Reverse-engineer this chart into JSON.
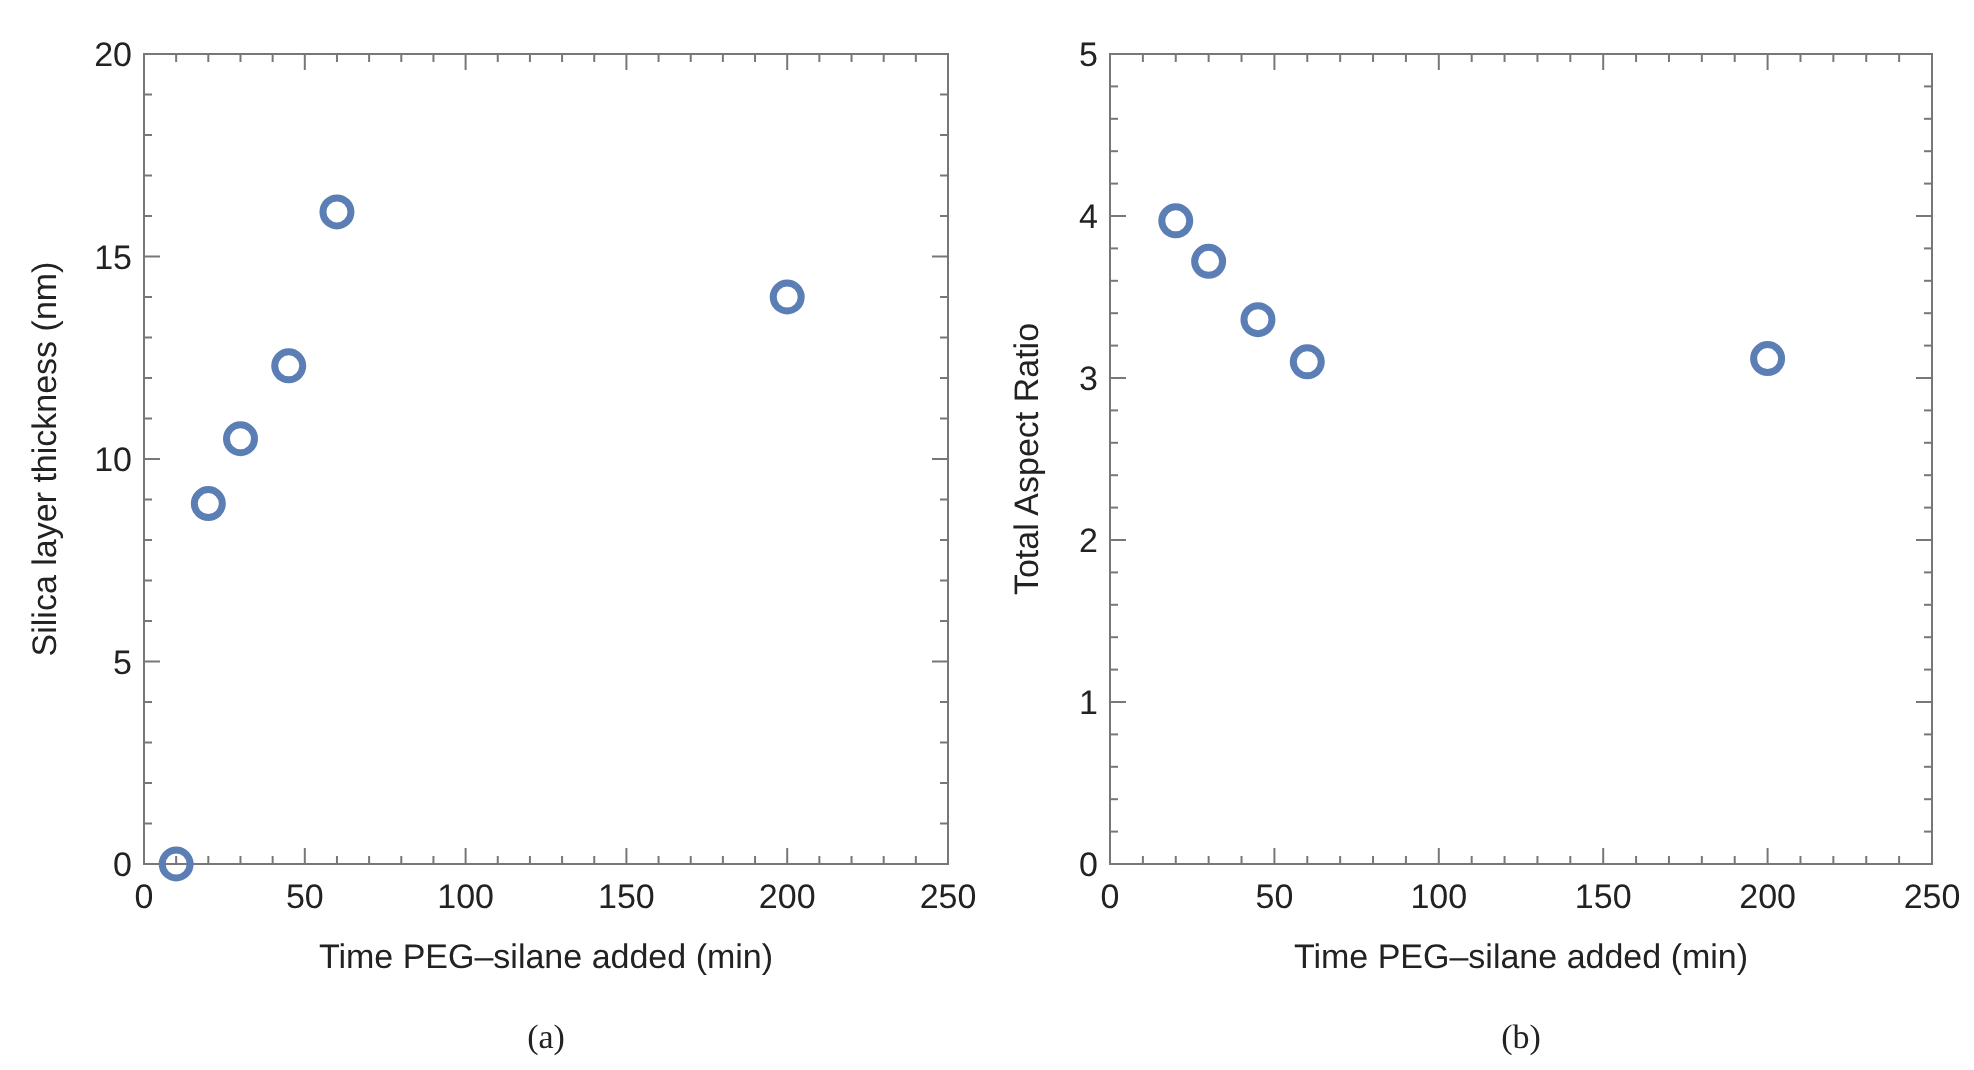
{
  "chart_data": [
    {
      "type": "scatter",
      "xlabel": "Time PEG–silane added (min)",
      "ylabel": "Silica layer thickness (nm)",
      "x": [
        10,
        20,
        30,
        45,
        60,
        200
      ],
      "series": [
        {
          "color": "#5b7fb5",
          "values": [
            0,
            8.9,
            10.5,
            12.3,
            16.1,
            14.0
          ]
        }
      ],
      "xlim": [
        0,
        250
      ],
      "xticks": [
        0,
        50,
        100,
        150,
        200,
        250
      ],
      "ylim": [
        0,
        20
      ],
      "yticks": [
        0,
        5,
        10,
        15,
        20
      ],
      "marker": "circle",
      "annotations": [
        "(a)"
      ]
    },
    {
      "type": "scatter",
      "xlabel": "Time PEG–silane added (min)",
      "ylabel": "Total Aspect Ratio",
      "x": [
        20,
        30,
        45,
        60,
        200
      ],
      "series": [
        {
          "color": "#5b7fb5",
          "values": [
            3.97,
            3.72,
            3.36,
            3.1,
            3.12
          ]
        }
      ],
      "xlim": [
        0,
        250
      ],
      "xticks": [
        0,
        50,
        100,
        150,
        200,
        250
      ],
      "ylim": [
        0,
        5
      ],
      "yticks": [
        0,
        1,
        2,
        3,
        4,
        5
      ],
      "marker": "circle",
      "annotations": [
        "(b)"
      ]
    }
  ]
}
